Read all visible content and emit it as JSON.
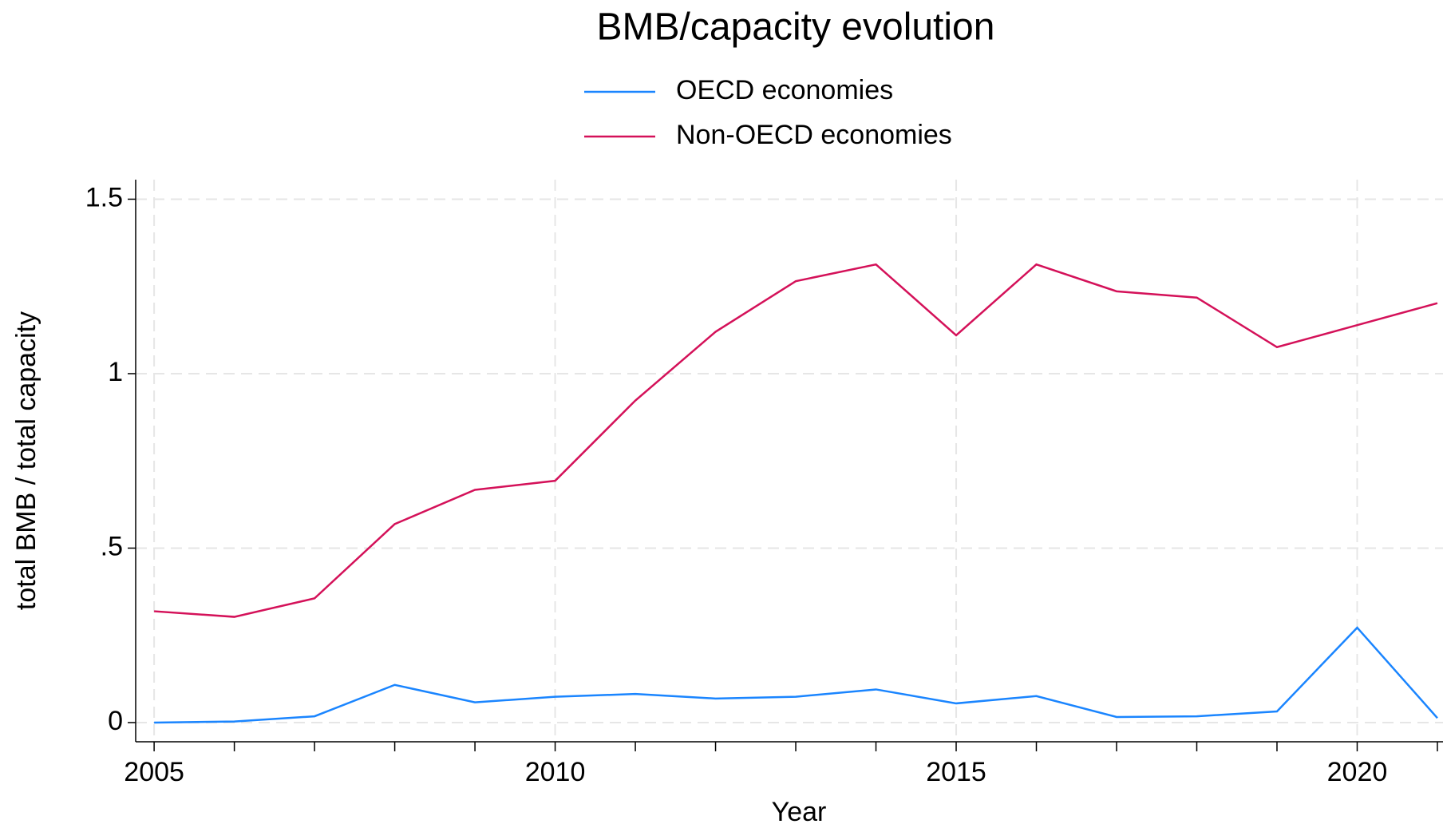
{
  "chart_data": {
    "type": "line",
    "title": "BMB/capacity evolution",
    "x_label": "Year",
    "y_label": "total BMB / total capacity",
    "x": [
      2005,
      2006,
      2007,
      2008,
      2009,
      2010,
      2011,
      2012,
      2013,
      2014,
      2015,
      2016,
      2017,
      2018,
      2019,
      2020,
      2021
    ],
    "series": [
      {
        "name": "OECD economies",
        "color": "#1a85ff",
        "values": [
          0.0,
          0.003,
          0.018,
          0.108,
          0.058,
          0.074,
          0.082,
          0.069,
          0.074,
          0.095,
          0.055,
          0.076,
          0.016,
          0.018,
          0.032,
          0.272,
          0.013
        ]
      },
      {
        "name": "Non-OECD economies",
        "color": "#d41159",
        "values": [
          0.319,
          0.303,
          0.356,
          0.569,
          0.667,
          0.693,
          0.923,
          1.12,
          1.265,
          1.313,
          1.11,
          1.313,
          1.236,
          1.218,
          1.076,
          1.139,
          1.202
        ]
      }
    ],
    "xlim": [
      2004.77,
      2021.07
    ],
    "ylim": [
      -0.055,
      1.556
    ],
    "xticks": [
      2005,
      2010,
      2015,
      2020
    ],
    "yticks": [
      0,
      {
        "value": 0.5,
        "label": ".5"
      },
      1,
      1.5
    ],
    "grid": true,
    "legend": "top"
  }
}
